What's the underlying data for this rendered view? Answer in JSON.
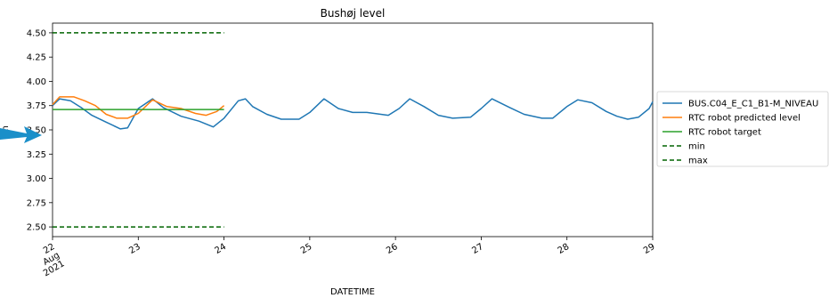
{
  "chart_data": {
    "type": "line",
    "title": "Bushøj level",
    "xlabel": "DATETIME",
    "ylabel": "m",
    "x_range": [
      "2021-08-22 00:00",
      "2021-08-29 00:00"
    ],
    "ylim": [
      2.4,
      4.6
    ],
    "y_ticks": [
      "2.50",
      "2.75",
      "3.00",
      "3.25",
      "3.50",
      "3.75",
      "4.00",
      "4.25",
      "4.50"
    ],
    "x_ticks": [
      {
        "x": "2021-08-22",
        "label": "22\nAug\n2021"
      },
      {
        "x": "2021-08-23",
        "label": "23"
      },
      {
        "x": "2021-08-24",
        "label": "24"
      },
      {
        "x": "2021-08-25",
        "label": "25"
      },
      {
        "x": "2021-08-26",
        "label": "26"
      },
      {
        "x": "2021-08-27",
        "label": "27"
      },
      {
        "x": "2021-08-28",
        "label": "28"
      },
      {
        "x": "2021-08-29",
        "label": "29"
      }
    ],
    "grid": false,
    "legend_position": "right",
    "series": [
      {
        "name": "BUS.C04_E_C1_B1-M_NIVEAU",
        "color": "#1f77b4",
        "style": "solid",
        "points": [
          [
            "2021-08-22 00:00",
            3.75
          ],
          [
            "2021-08-22 02:00",
            3.82
          ],
          [
            "2021-08-22 05:00",
            3.8
          ],
          [
            "2021-08-22 08:00",
            3.73
          ],
          [
            "2021-08-22 11:00",
            3.65
          ],
          [
            "2021-08-22 15:00",
            3.58
          ],
          [
            "2021-08-22 19:00",
            3.51
          ],
          [
            "2021-08-22 21:00",
            3.52
          ],
          [
            "2021-08-23 00:00",
            3.72
          ],
          [
            "2021-08-23 04:00",
            3.82
          ],
          [
            "2021-08-23 07:00",
            3.73
          ],
          [
            "2021-08-23 12:00",
            3.64
          ],
          [
            "2021-08-23 17:00",
            3.59
          ],
          [
            "2021-08-23 21:00",
            3.53
          ],
          [
            "2021-08-24 00:00",
            3.62
          ],
          [
            "2021-08-24 04:00",
            3.8
          ],
          [
            "2021-08-24 06:00",
            3.82
          ],
          [
            "2021-08-24 08:00",
            3.74
          ],
          [
            "2021-08-24 12:00",
            3.66
          ],
          [
            "2021-08-24 16:00",
            3.61
          ],
          [
            "2021-08-24 21:00",
            3.61
          ],
          [
            "2021-08-25 00:00",
            3.68
          ],
          [
            "2021-08-25 04:00",
            3.82
          ],
          [
            "2021-08-25 08:00",
            3.72
          ],
          [
            "2021-08-25 12:00",
            3.68
          ],
          [
            "2021-08-25 16:00",
            3.68
          ],
          [
            "2021-08-25 22:00",
            3.65
          ],
          [
            "2021-08-26 01:00",
            3.72
          ],
          [
            "2021-08-26 04:00",
            3.82
          ],
          [
            "2021-08-26 08:00",
            3.74
          ],
          [
            "2021-08-26 12:00",
            3.65
          ],
          [
            "2021-08-26 16:00",
            3.62
          ],
          [
            "2021-08-26 21:00",
            3.63
          ],
          [
            "2021-08-27 00:00",
            3.72
          ],
          [
            "2021-08-27 03:00",
            3.82
          ],
          [
            "2021-08-27 08:00",
            3.73
          ],
          [
            "2021-08-27 12:00",
            3.66
          ],
          [
            "2021-08-27 17:00",
            3.62
          ],
          [
            "2021-08-27 20:00",
            3.62
          ],
          [
            "2021-08-28 00:00",
            3.74
          ],
          [
            "2021-08-28 03:00",
            3.81
          ],
          [
            "2021-08-28 07:00",
            3.78
          ],
          [
            "2021-08-28 11:00",
            3.69
          ],
          [
            "2021-08-28 14:00",
            3.64
          ],
          [
            "2021-08-28 17:00",
            3.61
          ],
          [
            "2021-08-28 20:00",
            3.63
          ],
          [
            "2021-08-28 23:00",
            3.72
          ],
          [
            "2021-08-29 00:00",
            3.79
          ]
        ]
      },
      {
        "name": "RTC robot predicted level",
        "color": "#ff7f0e",
        "style": "solid",
        "points": [
          [
            "2021-08-22 00:00",
            3.76
          ],
          [
            "2021-08-22 02:00",
            3.84
          ],
          [
            "2021-08-22 06:00",
            3.84
          ],
          [
            "2021-08-22 09:00",
            3.8
          ],
          [
            "2021-08-22 12:00",
            3.75
          ],
          [
            "2021-08-22 15:00",
            3.66
          ],
          [
            "2021-08-22 18:00",
            3.62
          ],
          [
            "2021-08-22 21:00",
            3.62
          ],
          [
            "2021-08-23 00:00",
            3.67
          ],
          [
            "2021-08-23 04:00",
            3.81
          ],
          [
            "2021-08-23 08:00",
            3.74
          ],
          [
            "2021-08-23 12:00",
            3.72
          ],
          [
            "2021-08-23 16:00",
            3.67
          ],
          [
            "2021-08-23 19:00",
            3.65
          ],
          [
            "2021-08-23 22:00",
            3.69
          ],
          [
            "2021-08-24 00:00",
            3.75
          ]
        ]
      },
      {
        "name": "RTC robot target",
        "color": "#2ca02c",
        "style": "solid",
        "points": [
          [
            "2021-08-22 00:00",
            3.71
          ],
          [
            "2021-08-24 00:00",
            3.71
          ]
        ]
      },
      {
        "name": "min",
        "color": "#006400",
        "style": "dashed",
        "points": [
          [
            "2021-08-22 00:00",
            2.5
          ],
          [
            "2021-08-24 00:00",
            2.5
          ]
        ]
      },
      {
        "name": "max",
        "color": "#006400",
        "style": "dashed",
        "points": [
          [
            "2021-08-22 00:00",
            4.5
          ],
          [
            "2021-08-24 00:00",
            4.5
          ]
        ]
      }
    ],
    "annotation_arrow": {
      "color": "#1a8fc9",
      "points_at": "y-axis label"
    }
  }
}
